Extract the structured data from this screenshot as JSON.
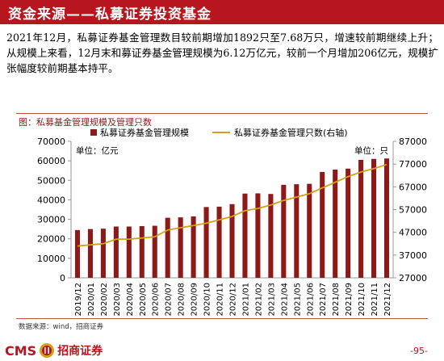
{
  "header": {
    "title": "资金来源——私募证券投资基金",
    "bar_color": "#b8161e"
  },
  "summary": "2021年12月，私募证券基金管理数目较前期增加1892只至7.68万只，增速较前期继续上升；从规模上来看，12月末和募证券基金管理规模为6.12万亿元，较前一个月增加206亿元，规模扩张幅度较前期基本持平。",
  "chart_title": "图：私募基金管理规模及管理只数",
  "source": "数据来源：wind，招商证券",
  "logo": {
    "latin": "CMS",
    "chinese": "招商证券"
  },
  "page": "-95-",
  "chart_data": {
    "type": "bar+line",
    "categories": [
      "2019/12",
      "2020/01",
      "2020/02",
      "2020/03",
      "2020/04",
      "2020/05",
      "2020/06",
      "2020/07",
      "2020/08",
      "2020/09",
      "2020/10",
      "2020/11",
      "2020/12",
      "2021/01",
      "2021/02",
      "2021/03",
      "2021/04",
      "2021/05",
      "2021/06",
      "2021/07",
      "2021/08",
      "2021/09",
      "2021/10",
      "2021/11",
      "2021/12"
    ],
    "series": [
      {
        "name": "私募证券基金管理规模",
        "kind": "bar",
        "axis": "left",
        "color": "#8b1a1a",
        "values": [
          24500,
          25000,
          25200,
          26300,
          26300,
          26500,
          26700,
          30800,
          31000,
          31500,
          36300,
          36500,
          37800,
          43200,
          43300,
          43000,
          47700,
          48000,
          48200,
          54300,
          55500,
          56000,
          60500,
          61000,
          61200
        ]
      },
      {
        "name": "私募证券基金管理只数(右轴)",
        "kind": "line",
        "axis": "right",
        "color": "#d4a017",
        "values": [
          41000,
          41500,
          42000,
          44000,
          44000,
          44500,
          45000,
          48000,
          49000,
          50000,
          51000,
          52500,
          54000,
          56500,
          57500,
          59000,
          61000,
          62500,
          64000,
          66500,
          69000,
          71500,
          73500,
          75000,
          76800
        ]
      }
    ],
    "left_axis": {
      "min": 0,
      "max": 70000,
      "ticks": [
        0,
        10000,
        20000,
        30000,
        40000,
        50000,
        60000,
        70000
      ],
      "unit_label": "单位：亿元"
    },
    "right_axis": {
      "min": 27000,
      "max": 87000,
      "ticks": [
        27000,
        37000,
        47000,
        57000,
        67000,
        77000,
        87000
      ],
      "unit_label": "单位：只"
    },
    "legend_position": "top",
    "grid": false
  }
}
